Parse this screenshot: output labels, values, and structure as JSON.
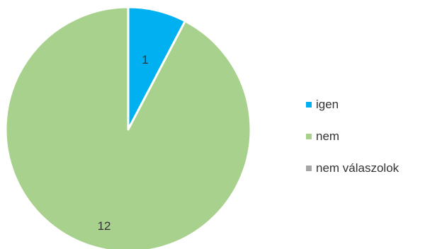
{
  "chart_data": {
    "type": "pie",
    "title": "",
    "categories": [
      "igen",
      "nem",
      "nem válaszolok"
    ],
    "values": [
      1,
      12,
      0
    ],
    "colors": [
      "#00b0f0",
      "#a9d18e",
      "#a5a5a5"
    ],
    "data_labels": [
      "1",
      "12",
      ""
    ],
    "legend_position": "right"
  }
}
